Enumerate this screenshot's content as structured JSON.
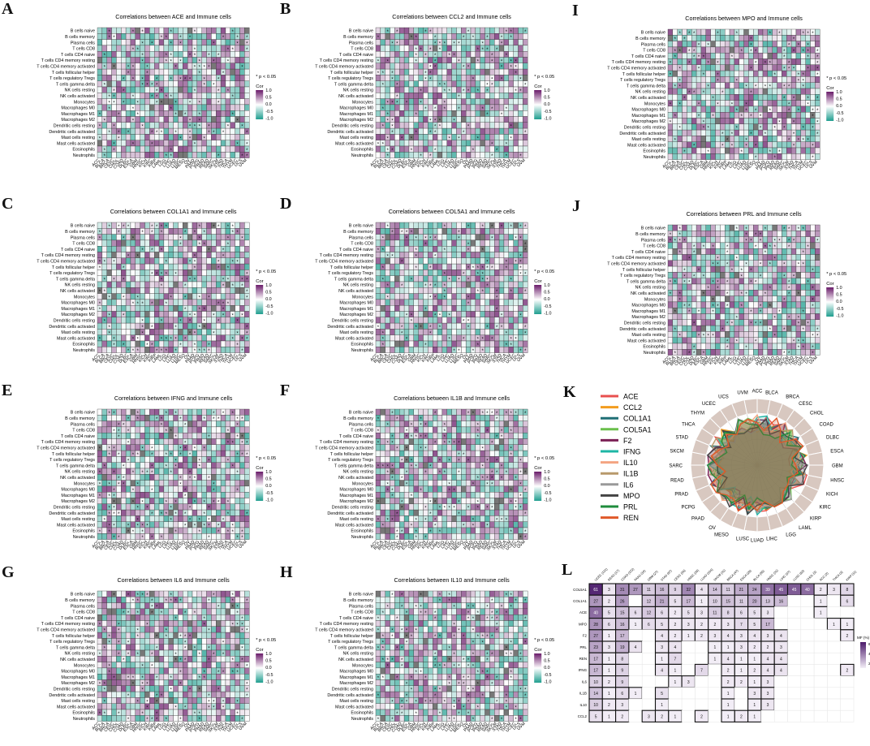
{
  "heatmap_panels": [
    {
      "letter": "A",
      "title": "Correlations between ACE and Immune cells"
    },
    {
      "letter": "B",
      "title": "Correlations between CCL2 and Immune cells"
    },
    {
      "letter": "I",
      "title": "Correlations between MPO and Immune cells"
    },
    {
      "letter": "C",
      "title": "Correlations between COL1A1 and Immune cells"
    },
    {
      "letter": "D",
      "title": "Correlations between COL5A1 and Immune cells"
    },
    {
      "letter": "J",
      "title": "Correlations between PRL and Immune cells"
    },
    {
      "letter": "E",
      "title": "Correlations between IFNG and Immune cells"
    },
    {
      "letter": "F",
      "title": "Correlations between IL1B and Immune cells"
    },
    {
      "letter": "G",
      "title": "Correlations between IL6 and Immune cells"
    },
    {
      "letter": "H",
      "title": "Correlations between IL10 and Immune cells"
    }
  ],
  "immune_cells": [
    "B cells naive",
    "B cells memory",
    "Plasma cells",
    "T cells CD8",
    "T cells CD4 naive",
    "T cells CD4 memory resting",
    "T cells CD4 memory activated",
    "T cells follicular helper",
    "T cells regulatory Tregs",
    "T cells gamma delta",
    "NK cells resting",
    "NK cells activated",
    "Monocytes",
    "Macrophages M0",
    "Macrophages M1",
    "Macrophages M2",
    "Dendritic cells resting",
    "Dendritic cells activated",
    "Mast cells resting",
    "Mast cells activated",
    "Eosinophils",
    "Neutrophils"
  ],
  "cancers": [
    "ACC",
    "BLCA",
    "BRCA",
    "CESC",
    "CHOL",
    "COAD",
    "DLBC",
    "ESCA",
    "GBM",
    "HNSC",
    "KICH",
    "KIRC",
    "KIRP",
    "LAML",
    "LGG",
    "LIHC",
    "LUAD",
    "LUSC",
    "MESO",
    "OV",
    "PAAD",
    "PCPG",
    "PRAD",
    "READ",
    "SARC",
    "SKCM",
    "STAD",
    "THCA",
    "THYM",
    "UCEC",
    "UCS",
    "UVM"
  ],
  "significance_note": "* p < 0.05",
  "legend_title": "Cor",
  "legend_ticks": [
    "1.0",
    "0.5",
    "0.0",
    "-0.5",
    "-1.0"
  ],
  "colors": {
    "high": "#6a1b6a",
    "mid": "#ffffff",
    "low": "#1f9e8f",
    "na": "#777777",
    "grid": "#333333"
  },
  "radar": {
    "letter": "K",
    "genes": [
      {
        "name": "ACE",
        "color": "#e8504f"
      },
      {
        "name": "CCL2",
        "color": "#f39c1e"
      },
      {
        "name": "COL1A1",
        "color": "#1f6f75"
      },
      {
        "name": "COL5A1",
        "color": "#6abf4b"
      },
      {
        "name": "F2",
        "color": "#7b2155"
      },
      {
        "name": "IFNG",
        "color": "#1db6a5"
      },
      {
        "name": "IL10",
        "color": "#f4a582"
      },
      {
        "name": "IL1B",
        "color": "#b8996b"
      },
      {
        "name": "IL6",
        "color": "#9a9a9a"
      },
      {
        "name": "MPO",
        "color": "#444444"
      },
      {
        "name": "PRL",
        "color": "#1f8c3c"
      },
      {
        "name": "REN",
        "color": "#e0592a"
      }
    ],
    "axes": [
      "ACC",
      "BLCA",
      "BRCA",
      "CESC",
      "CHOL",
      "COAD",
      "DLBC",
      "ESCA",
      "GBM",
      "HNSC",
      "KICH",
      "KIRC",
      "KIRP",
      "LAML",
      "LGG",
      "LIHC",
      "LUAD",
      "LUSC",
      "MESO",
      "OV",
      "PAAD",
      "PCPG",
      "PRAD",
      "READ",
      "SARC",
      "SKCM",
      "STAD",
      "THCA",
      "THYM",
      "UCEC",
      "UCS",
      "UVM"
    ]
  },
  "mutation_table": {
    "letter": "L",
    "columns": [
      "UCEC (131)",
      "READ (17)",
      "COAD (102)",
      "PAAD (16)",
      "GBM (27)",
      "STAD (87)",
      "CESC (36)",
      "HNSC (28)",
      "LUAD (104)",
      "SKCM (31)",
      "BRCA (47)",
      "ESCA (26)",
      "BLCA (55)",
      "HNSC (31)",
      "LIHC (37)",
      "LUSC (63)",
      "CHOL (3)",
      "ACC (2)",
      "THCA (3)",
      "KIRP (11)"
    ],
    "rows": [
      "COL5A1",
      "COL1A1",
      "ACE",
      "MPO",
      "F2",
      "PRL",
      "REN",
      "IFNG",
      "IL6",
      "IL1B",
      "IL10",
      "CCL2"
    ],
    "values": [
      [
        61,
        3,
        31,
        27,
        11,
        16,
        9,
        32,
        4,
        14,
        11,
        21,
        24,
        39,
        45,
        45,
        40,
        2,
        3,
        8
      ],
      [
        27,
        2,
        26,
        null,
        12,
        21,
        5,
        17,
        1,
        10,
        15,
        11,
        20,
        13,
        16,
        null,
        null,
        1,
        null,
        6
      ],
      [
        40,
        5,
        15,
        6,
        12,
        6,
        2,
        5,
        3,
        11,
        8,
        6,
        5,
        3,
        null,
        null,
        null,
        1,
        null,
        null
      ],
      [
        28,
        6,
        16,
        1,
        6,
        5,
        2,
        3,
        2,
        2,
        3,
        7,
        5,
        17,
        null,
        null,
        null,
        null,
        1,
        1
      ],
      [
        27,
        1,
        17,
        null,
        null,
        4,
        2,
        1,
        2,
        3,
        4,
        3,
        4,
        3,
        4,
        null,
        null,
        null,
        null,
        2
      ],
      [
        23,
        3,
        19,
        4,
        null,
        3,
        4,
        null,
        null,
        1,
        1,
        3,
        2,
        2,
        3,
        null,
        null,
        null,
        null,
        null
      ],
      [
        17,
        1,
        8,
        null,
        null,
        1,
        7,
        null,
        null,
        1,
        4,
        1,
        1,
        4,
        4,
        null,
        null,
        null,
        null,
        null
      ],
      [
        17,
        1,
        9,
        null,
        null,
        4,
        1,
        null,
        7,
        null,
        2,
        1,
        2,
        4,
        4,
        null,
        null,
        null,
        null,
        2
      ],
      [
        10,
        2,
        9,
        null,
        null,
        null,
        1,
        3,
        null,
        null,
        2,
        2,
        1,
        3,
        null,
        null,
        null,
        null,
        null,
        null
      ],
      [
        14,
        1,
        6,
        1,
        null,
        5,
        null,
        null,
        null,
        null,
        1,
        null,
        3,
        3,
        null,
        null,
        null,
        null,
        null,
        null
      ],
      [
        10,
        2,
        3,
        null,
        null,
        1,
        null,
        null,
        null,
        null,
        1,
        null,
        1,
        3,
        null,
        null,
        null,
        null,
        null,
        null
      ],
      [
        5,
        1,
        2,
        null,
        3,
        2,
        1,
        null,
        2,
        null,
        1,
        2,
        1,
        null,
        null,
        null,
        null,
        null,
        null,
        null
      ]
    ],
    "legend_title": "MF (%)",
    "legend_ticks": [
      "60",
      "40",
      "20"
    ]
  },
  "chart_data": [
    {
      "type": "heatmap",
      "title": "Correlations between ACE and Immune cells"
    },
    {
      "type": "heatmap",
      "title": "Correlations between CCL2 and Immune cells"
    },
    {
      "type": "heatmap",
      "title": "Correlations between MPO and Immune cells"
    },
    {
      "type": "heatmap",
      "title": "Correlations between COL1A1 and Immune cells"
    },
    {
      "type": "heatmap",
      "title": "Correlations between COL5A1 and Immune cells"
    },
    {
      "type": "heatmap",
      "title": "Correlations between PRL and Immune cells"
    },
    {
      "type": "heatmap",
      "title": "Correlations between IFNG and Immune cells"
    },
    {
      "type": "heatmap",
      "title": "Correlations between IL1B and Immune cells"
    },
    {
      "type": "heatmap",
      "title": "Correlations between IL6 and Immune cells"
    },
    {
      "type": "heatmap",
      "title": "Correlations between IL10 and Immune cells"
    },
    {
      "type": "radar",
      "series": [
        "ACE",
        "CCL2",
        "COL1A1",
        "COL5A1",
        "F2",
        "IFNG",
        "IL10",
        "IL1B",
        "IL6",
        "MPO",
        "PRL",
        "REN"
      ]
    },
    {
      "type": "table",
      "title": "",
      "ylabel": "MF (%)"
    }
  ]
}
